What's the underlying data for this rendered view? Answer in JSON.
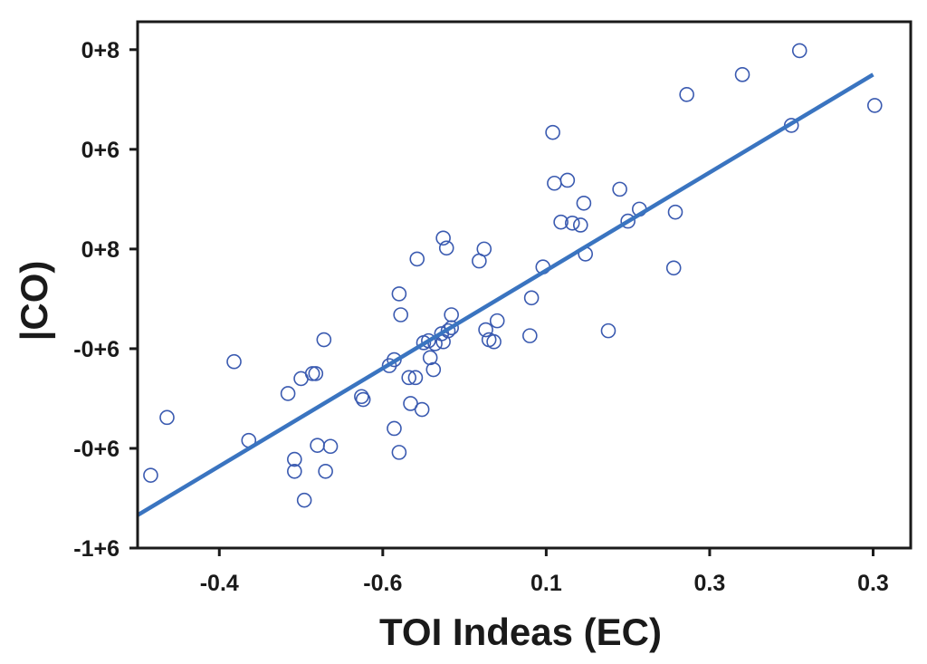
{
  "chart_data": {
    "type": "scatter",
    "title": "",
    "xlabel": "TOI Indeas (EC)",
    "ylabel": "|CO)",
    "x_ticks": [
      {
        "pos": 0,
        "label": "-0.4"
      },
      {
        "pos": 1,
        "label": "-0.6"
      },
      {
        "pos": 2,
        "label": "0.1"
      },
      {
        "pos": 3,
        "label": "0.3"
      },
      {
        "pos": 4,
        "label": "0.3"
      }
    ],
    "y_ticks": [
      {
        "pos": 5,
        "label": "0+8"
      },
      {
        "pos": 4,
        "label": "0+6"
      },
      {
        "pos": 3,
        "label": "0+8"
      },
      {
        "pos": 2,
        "label": "-0+6"
      },
      {
        "pos": 1,
        "label": "-0+6"
      },
      {
        "pos": 0,
        "label": "-1+6"
      }
    ],
    "xlim": [
      -0.5,
      4.23
    ],
    "ylim": [
      0,
      5.28
    ],
    "grid": false,
    "marker_color": "#3a5ab0",
    "line_color": "#3a74c0",
    "trend_line": {
      "x": [
        -0.5,
        4.0
      ],
      "y": [
        0.33,
        4.75
      ]
    },
    "points": [
      [
        -0.42,
        0.73
      ],
      [
        -0.32,
        1.31
      ],
      [
        0.09,
        1.87
      ],
      [
        0.18,
        1.08
      ],
      [
        0.42,
        1.55
      ],
      [
        0.46,
        0.89
      ],
      [
        0.46,
        0.77
      ],
      [
        0.5,
        1.7
      ],
      [
        0.52,
        0.48
      ],
      [
        0.57,
        1.75
      ],
      [
        0.59,
        1.75
      ],
      [
        0.6,
        1.03
      ],
      [
        0.64,
        2.09
      ],
      [
        0.65,
        0.77
      ],
      [
        0.68,
        1.02
      ],
      [
        0.87,
        1.52
      ],
      [
        0.88,
        1.49
      ],
      [
        1.04,
        1.83
      ],
      [
        1.07,
        1.89
      ],
      [
        1.07,
        1.2
      ],
      [
        1.1,
        2.55
      ],
      [
        1.1,
        0.96
      ],
      [
        1.11,
        2.34
      ],
      [
        1.16,
        1.71
      ],
      [
        1.17,
        1.45
      ],
      [
        1.2,
        1.71
      ],
      [
        1.21,
        2.9
      ],
      [
        1.24,
        1.39
      ],
      [
        1.25,
        2.06
      ],
      [
        1.28,
        2.08
      ],
      [
        1.29,
        1.91
      ],
      [
        1.31,
        1.79
      ],
      [
        1.32,
        2.05
      ],
      [
        1.36,
        2.15
      ],
      [
        1.37,
        3.11
      ],
      [
        1.37,
        2.07
      ],
      [
        1.39,
        3.01
      ],
      [
        1.4,
        2.18
      ],
      [
        1.42,
        2.21
      ],
      [
        1.42,
        2.34
      ],
      [
        1.59,
        2.88
      ],
      [
        1.62,
        3.0
      ],
      [
        1.63,
        2.19
      ],
      [
        1.65,
        2.09
      ],
      [
        1.68,
        2.07
      ],
      [
        1.7,
        2.28
      ],
      [
        1.9,
        2.13
      ],
      [
        1.91,
        2.51
      ],
      [
        1.98,
        2.82
      ],
      [
        2.04,
        4.17
      ],
      [
        2.05,
        3.66
      ],
      [
        2.09,
        3.27
      ],
      [
        2.13,
        3.69
      ],
      [
        2.16,
        3.26
      ],
      [
        2.21,
        3.24
      ],
      [
        2.23,
        3.46
      ],
      [
        2.24,
        2.95
      ],
      [
        2.38,
        2.18
      ],
      [
        2.45,
        3.6
      ],
      [
        2.5,
        3.28
      ],
      [
        2.57,
        3.4
      ],
      [
        2.78,
        2.81
      ],
      [
        2.79,
        3.37
      ],
      [
        2.86,
        4.55
      ],
      [
        3.2,
        4.75
      ],
      [
        3.5,
        4.24
      ],
      [
        3.55,
        4.99
      ],
      [
        4.01,
        4.44
      ]
    ]
  }
}
